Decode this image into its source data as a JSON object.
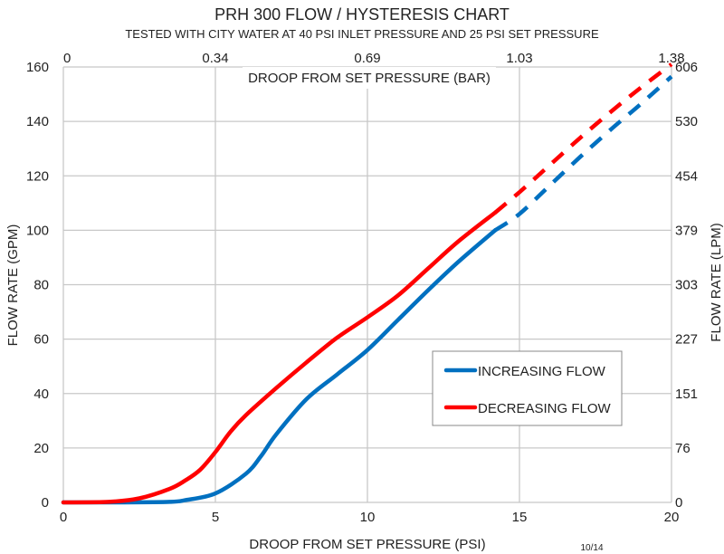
{
  "chart_data": {
    "type": "line",
    "title": "PRH 300 FLOW / HYSTERESIS CHART",
    "subtitle": "TESTED WITH CITY WATER AT 40 PSI INLET PRESSURE AND 25 PSI SET PRESSURE",
    "xlabel": "DROOP FROM SET PRESSURE (PSI)",
    "ylabel": "FLOW RATE (GPM)",
    "x2label": "DROOP FROM SET PRESSURE (BAR)",
    "y2label": "FLOW RATE (LPM)",
    "xlim": [
      0,
      20
    ],
    "ylim": [
      0,
      160
    ],
    "grid": true,
    "legend_position": "center-right",
    "x_ticks": [
      "0",
      "5",
      "10",
      "15",
      "20"
    ],
    "y_ticks": [
      "0",
      "20",
      "40",
      "60",
      "80",
      "100",
      "120",
      "140",
      "160"
    ],
    "x2_ticks": [
      "0",
      "0.34",
      "0.69",
      "1.03",
      "1.38"
    ],
    "y2_ticks": [
      "0",
      "76",
      "151",
      "227",
      "303",
      "379",
      "454",
      "530",
      "606"
    ],
    "series": [
      {
        "name": "INCREASING FLOW",
        "color": "#0070C0",
        "solid_points": [
          [
            0,
            0
          ],
          [
            2,
            0
          ],
          [
            3.5,
            0.2
          ],
          [
            4,
            0.8
          ],
          [
            5,
            3.3
          ],
          [
            6,
            10.5
          ],
          [
            6.5,
            17
          ],
          [
            7,
            25
          ],
          [
            8,
            38
          ],
          [
            9,
            47
          ],
          [
            10,
            56
          ],
          [
            11,
            67
          ],
          [
            12,
            78
          ],
          [
            13,
            88.5
          ],
          [
            14.2,
            100
          ]
        ],
        "dashed_points": [
          [
            14.2,
            100
          ],
          [
            15,
            106
          ],
          [
            16,
            116.5
          ],
          [
            17,
            127
          ],
          [
            18,
            137
          ],
          [
            19,
            146.5
          ],
          [
            20,
            156.5
          ]
        ]
      },
      {
        "name": "DECREASING FLOW",
        "color": "#FF0000",
        "solid_points": [
          [
            0,
            0
          ],
          [
            1.5,
            0.2
          ],
          [
            2.5,
            1.5
          ],
          [
            3.5,
            5
          ],
          [
            4,
            8
          ],
          [
            4.5,
            12
          ],
          [
            5,
            18.5
          ],
          [
            5.5,
            26
          ],
          [
            6,
            32
          ],
          [
            7,
            42
          ],
          [
            8,
            51.5
          ],
          [
            9,
            60.5
          ],
          [
            10,
            68
          ],
          [
            11,
            76
          ],
          [
            12,
            86
          ],
          [
            13,
            96
          ],
          [
            14.2,
            106.5
          ]
        ],
        "dashed_points": [
          [
            14.2,
            106.5
          ],
          [
            15,
            114
          ],
          [
            16,
            124
          ],
          [
            17,
            134
          ],
          [
            18,
            143.5
          ],
          [
            19,
            152.5
          ],
          [
            20,
            161
          ]
        ]
      }
    ]
  },
  "footer": {
    "code": "10/14"
  }
}
